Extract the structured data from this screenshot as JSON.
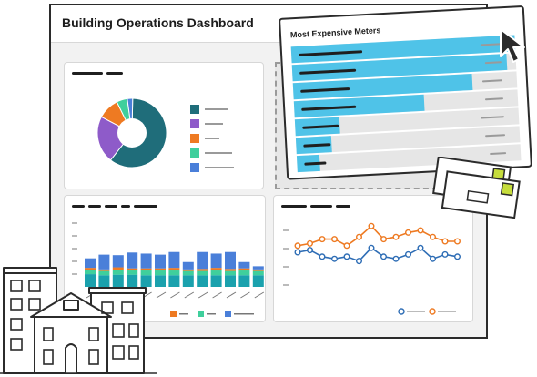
{
  "window": {
    "title": "Building Operations Dashboard"
  },
  "expensive_meters": {
    "title": "Most Expensive Meters",
    "bars": [
      1.0,
      0.96,
      0.8,
      0.58,
      0.2,
      0.16,
      0.1
    ]
  },
  "colors": {
    "teal_dark": "#1f6d7a",
    "purple": "#8e5bc9",
    "orange": "#ee7a22",
    "mint": "#3fcf9c",
    "blue": "#4a7fd9",
    "cyan": "#4fc3e8",
    "window_bg": "#f2f2f2",
    "outline": "#2b2b2b",
    "envelope_stamp": "#c6dd3c"
  },
  "icons": [
    "cursor-arrow-icon",
    "envelope-icon",
    "building-icon"
  ],
  "chart_data": [
    {
      "type": "pie",
      "values": [
        60,
        22,
        10,
        5,
        2.5
      ],
      "colors": [
        "#1f6d7a",
        "#8e5bc9",
        "#ee7a22",
        "#3fcf9c",
        "#4a7fd9"
      ],
      "donut": true,
      "legend_placement": "right"
    },
    {
      "type": "bar",
      "stacked": true,
      "series": [
        {
          "values": [
            24,
            22,
            23,
            23,
            22,
            22,
            22,
            22,
            22,
            22,
            22,
            22,
            22,
            22
          ]
        },
        {
          "values": [
            8,
            8,
            9,
            8,
            9,
            9,
            9,
            8,
            8,
            9,
            8,
            9,
            8,
            6
          ]
        },
        {
          "values": [
            4,
            3,
            5,
            4,
            4,
            4,
            5,
            3,
            4,
            5,
            4,
            4,
            3,
            2
          ]
        },
        {
          "values": [
            18,
            28,
            23,
            30,
            28,
            26,
            30,
            14,
            32,
            27,
            32,
            12,
            6,
            0
          ]
        }
      ],
      "series_colors": [
        "#1aa1ad",
        "#3fcf9c",
        "#ee7a22",
        "#4a7fd9"
      ],
      "legend_placement": "bottom"
    },
    {
      "type": "line",
      "series": [
        {
          "values": [
            50,
            51,
            48,
            47,
            48,
            46,
            52,
            48,
            47,
            49,
            52,
            47,
            49,
            48
          ]
        },
        {
          "values": [
            53,
            54,
            56,
            56,
            53,
            57,
            62,
            56,
            57,
            59,
            60,
            57,
            55,
            55
          ]
        }
      ],
      "series_colors": [
        "#2e6db5",
        "#ee7a22"
      ],
      "legend_placement": "bottom"
    }
  ]
}
